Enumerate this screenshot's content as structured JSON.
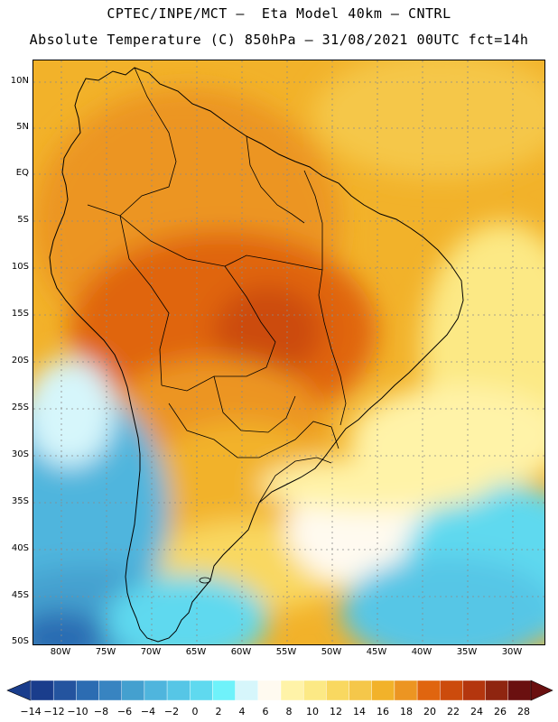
{
  "header": {
    "line1": "CPTEC/INPE/MCT –  Eta Model 40km – CNTRL",
    "line2": "Absolute Temperature (C) 850hPa – 31/08/2021 00UTC fct=14h"
  },
  "map": {
    "lat_labels": [
      "10N",
      "5N",
      "EQ",
      "5S",
      "10S",
      "15S",
      "20S",
      "25S",
      "30S",
      "35S",
      "40S",
      "45S",
      "50S"
    ],
    "lon_labels": [
      "80W",
      "75W",
      "70W",
      "65W",
      "60W",
      "55W",
      "50W",
      "45W",
      "40W",
      "35W",
      "30W"
    ],
    "colors": {
      "gridline": "#8a8a8a",
      "coastline": "#000000",
      "frame": "#000000"
    }
  },
  "colorbar": {
    "labels": [
      "−14",
      "−12",
      "−10",
      "−8",
      "−6",
      "−4",
      "−2",
      "0",
      "2",
      "4",
      "6",
      "8",
      "10",
      "12",
      "14",
      "16",
      "18",
      "20",
      "22",
      "24",
      "26",
      "28"
    ],
    "colors": [
      "#1a3d8c",
      "#24549f",
      "#2c6cb2",
      "#3884c1",
      "#44a0cf",
      "#4fb5dd",
      "#56c6e6",
      "#5fd9ef",
      "#6ff2fa",
      "#d6f6fb",
      "#fffaf0",
      "#fff3a8",
      "#fce985",
      "#f9d860",
      "#f5c74a",
      "#f2b22a",
      "#ec9522",
      "#e0650f",
      "#cc4b0c",
      "#b4360e",
      "#8f2510",
      "#6a1010"
    ]
  }
}
